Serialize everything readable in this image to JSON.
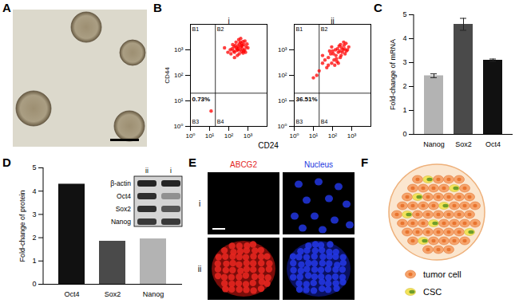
{
  "panel_letters": [
    "A",
    "B",
    "C",
    "D",
    "E",
    "F"
  ],
  "chart_data": [
    {
      "type": "scatter",
      "x_label": "CD24",
      "y_label": "CD44",
      "log": true,
      "color": "#ff0000",
      "xlim": [
        1,
        10000
      ],
      "ylim": [
        1,
        10000
      ],
      "xticks": [
        {
          "value": 1,
          "label": "10⁰"
        },
        {
          "value": 10,
          "label": "10¹"
        },
        {
          "value": 100,
          "label": "10²"
        },
        {
          "value": 1000,
          "label": "10³"
        }
      ],
      "yticks": [
        {
          "value": 1,
          "label": "10⁰"
        },
        {
          "value": 10,
          "label": "10¹"
        },
        {
          "value": 100,
          "label": "10²"
        },
        {
          "value": 1000,
          "label": "10³"
        }
      ],
      "quadrant_labels": [
        "B1",
        "B2",
        "B3",
        "B4"
      ],
      "gate_x": 20,
      "gate_y": 20,
      "subplots": [
        {
          "name": "i",
          "annotation": "0.73%",
          "x": [
            300,
            500,
            200,
            400,
            250,
            600,
            150,
            350,
            800,
            450,
            220,
            280,
            700,
            180,
            520,
            900,
            330,
            130,
            410,
            260,
            620,
            190,
            560,
            380,
            240,
            1000,
            310,
            470,
            160,
            680,
            120,
            420,
            90,
            550,
            290,
            750,
            200,
            350,
            60,
            480,
            12
          ],
          "y": [
            1000,
            1500,
            800,
            2000,
            1200,
            900,
            1100,
            700,
            1300,
            1800,
            1500,
            600,
            2200,
            900,
            1100,
            1700,
            2500,
            700,
            1300,
            950,
            1600,
            1300,
            750,
            1000,
            2000,
            1200,
            1400,
            850,
            1600,
            1000,
            1000,
            2800,
            800,
            2100,
            1150,
            800,
            500,
            1700,
            1200,
            1400,
            4
          ]
        },
        {
          "name": "ii",
          "annotation": "36.51%",
          "x": [
            200,
            300,
            150,
            400,
            100,
            250,
            80,
            350,
            500,
            120,
            60,
            180,
            450,
            90,
            40,
            220,
            600,
            130,
            70,
            280,
            30,
            160,
            380,
            110,
            50,
            240,
            700,
            20,
            140,
            320,
            200,
            90,
            15,
            420,
            60,
            260,
            170,
            10,
            30,
            520
          ],
          "y": [
            800,
            1200,
            600,
            1500,
            900,
            500,
            700,
            1000,
            1800,
            400,
            500,
            1100,
            700,
            300,
            400,
            1400,
            1000,
            250,
            900,
            600,
            300,
            450,
            2000,
            700,
            200,
            900,
            1300,
            150,
            1000,
            800,
            300,
            1300,
            100,
            1100,
            250,
            1600,
            350,
            80,
            600,
            900
          ]
        }
      ]
    },
    {
      "type": "bar",
      "y_label": "Fold-change of mRNA",
      "categories": [
        "Nanog",
        "Sox2",
        "Oct4"
      ],
      "values": [
        2.45,
        4.6,
        3.1
      ],
      "errors": [
        0.08,
        0.25,
        0.05
      ],
      "colors": [
        "#b3b3b3",
        "#4a4a4a",
        "#111111"
      ],
      "ylim": [
        0,
        5
      ],
      "yticks": [
        0,
        1,
        2,
        3,
        4,
        5
      ]
    },
    {
      "type": "bar",
      "y_label": "Fold-change of protein",
      "categories": [
        "Oct4",
        "Sox2",
        "Nanog"
      ],
      "values": [
        4.3,
        1.85,
        1.95
      ],
      "colors": [
        "#111111",
        "#4a4a4a",
        "#b3b3b3"
      ],
      "ylim": [
        0,
        5
      ],
      "yticks": [
        0,
        1,
        2,
        3,
        4,
        5
      ]
    }
  ],
  "blot": {
    "columns": [
      "ii",
      "i"
    ],
    "rows": [
      "β-actin",
      "Oct4",
      "Sox2",
      "Nanog"
    ]
  },
  "fluorescence": {
    "channels": [
      "ABCG2",
      "Nucleus"
    ],
    "channel_colors": [
      "#e3261f",
      "#2236e0"
    ],
    "rows": [
      "i",
      "ii"
    ]
  },
  "diagram": {
    "legend": [
      {
        "label": "tumor cell",
        "color": "#f6a46c"
      },
      {
        "label": "CSC",
        "color": "#f3e35a"
      }
    ]
  }
}
